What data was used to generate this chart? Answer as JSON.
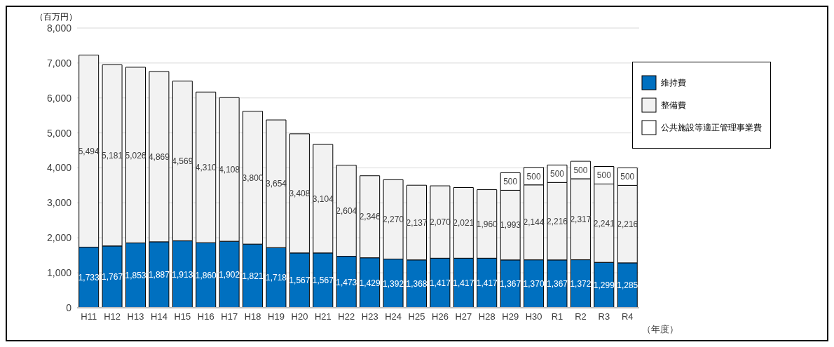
{
  "chart_data": {
    "type": "bar",
    "stacked": true,
    "ylabel": "（百万円）",
    "xlabel": "（年度）",
    "categories": [
      "H11",
      "H12",
      "H13",
      "H14",
      "H15",
      "H16",
      "H17",
      "H18",
      "H19",
      "H20",
      "H21",
      "H22",
      "H23",
      "H24",
      "H25",
      "H26",
      "H27",
      "H28",
      "H29",
      "H30",
      "R1",
      "R2",
      "R3",
      "R4"
    ],
    "series": [
      {
        "name": "維持費",
        "color": "#0070c0",
        "values": [
          1733,
          1767,
          1853,
          1887,
          1913,
          1860,
          1902,
          1821,
          1718,
          1567,
          1567,
          1473,
          1429,
          1392,
          1368,
          1417,
          1417,
          1417,
          1367,
          1370,
          1367,
          1372,
          1299,
          1285
        ],
        "value_labels": [
          "1,733",
          "1,767",
          "1,853",
          "1,887",
          "1,913",
          "1,860",
          "1,902",
          "1,821",
          "1,718",
          "1,567",
          "1,567",
          "1,473",
          "1,429",
          "1,392",
          "1,368",
          "1,417",
          "1,417",
          "1,417",
          "1,367",
          "1,370",
          "1,367",
          "1,372",
          "1,299",
          "1,285"
        ]
      },
      {
        "name": "整備費",
        "color": "#f2f2f2",
        "values": [
          5494,
          5181,
          5026,
          4869,
          4569,
          4310,
          4108,
          3800,
          3654,
          3408,
          3104,
          2604,
          2346,
          2270,
          2137,
          2070,
          2021,
          1960,
          1993,
          2144,
          2216,
          2317,
          2241,
          2216
        ],
        "value_labels": [
          "5,494",
          "5,181",
          "5,026",
          "4,869",
          "4,569",
          "4,310",
          "4,108",
          "3,800",
          "3,654",
          "3,408",
          "3,104",
          "2,604",
          "2,346",
          "2,270",
          "2,137",
          "2,070",
          "2,021",
          "1,960",
          "1,993",
          "2,144",
          "2,216",
          "2,317",
          "2,241",
          "2,216"
        ]
      },
      {
        "name": "公共施設等適正管理事業費",
        "color": "#ffffff",
        "values": [
          null,
          null,
          null,
          null,
          null,
          null,
          null,
          null,
          null,
          null,
          null,
          null,
          null,
          null,
          null,
          null,
          null,
          null,
          500,
          500,
          500,
          500,
          500,
          500
        ],
        "value_labels": [
          null,
          null,
          null,
          null,
          null,
          null,
          null,
          null,
          null,
          null,
          null,
          null,
          null,
          null,
          null,
          null,
          null,
          null,
          "500",
          "500",
          "500",
          "500",
          "500",
          "500"
        ]
      }
    ],
    "ylim": [
      0,
      8000
    ],
    "yticks": [
      0,
      {
        "value": 1000,
        "label": "1,000"
      },
      {
        "value": 2000,
        "label": "2,000"
      },
      {
        "value": 3000,
        "label": "3,000"
      },
      {
        "value": 4000,
        "label": "4,000"
      },
      {
        "value": 5000,
        "label": "5,000"
      },
      {
        "value": 6000,
        "label": "6,000"
      },
      {
        "value": 7000,
        "label": "7,000"
      },
      {
        "value": 8000,
        "label": "8,000"
      }
    ],
    "grid": "y",
    "legend": "top right"
  }
}
